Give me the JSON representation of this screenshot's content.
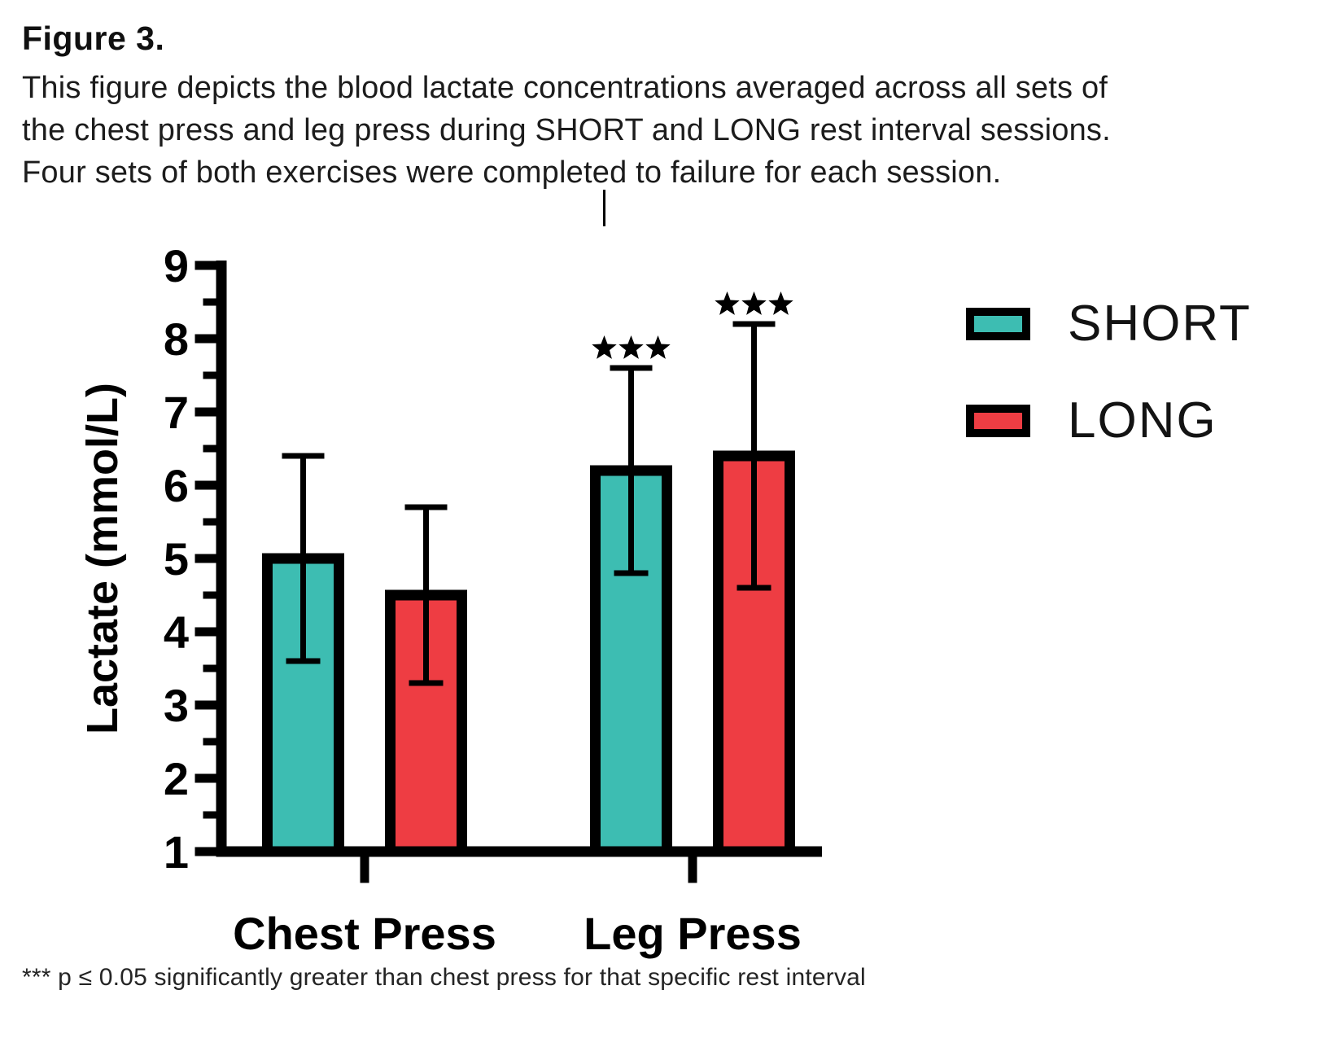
{
  "figure": {
    "title": "Figure 3.",
    "caption_lines": [
      "This figure depicts the blood lactate concentrations averaged across all sets of",
      "the chest press and leg press during SHORT and LONG rest interval sessions.",
      "Four sets of both exercises were completed to failure for each session."
    ],
    "footnote": "*** p ≤ 0.05 significantly greater than chest press for that specific rest interval"
  },
  "chart_data": {
    "type": "bar",
    "title": "",
    "xlabel": "",
    "ylabel": "Lactate (mmol/L)",
    "ylim": [
      1,
      9
    ],
    "y_tick_step": 1,
    "y_minor_tick_step": 0.5,
    "grid": false,
    "legend_position": "upper-right",
    "error_type": "sd-whiskers",
    "axis_color": "#000000",
    "bar_outline_color": "#000000",
    "categories": [
      "Chest Press",
      "Leg Press"
    ],
    "series": [
      {
        "name": "SHORT",
        "color": "#3DBDB2",
        "values": [
          5.0,
          6.2
        ],
        "sd": [
          1.4,
          1.4
        ],
        "significance": [
          "",
          "***"
        ]
      },
      {
        "name": "LONG",
        "color": "#EE3D43",
        "values": [
          4.5,
          6.4
        ],
        "sd": [
          1.2,
          1.8
        ],
        "significance": [
          "",
          "***"
        ]
      }
    ]
  }
}
